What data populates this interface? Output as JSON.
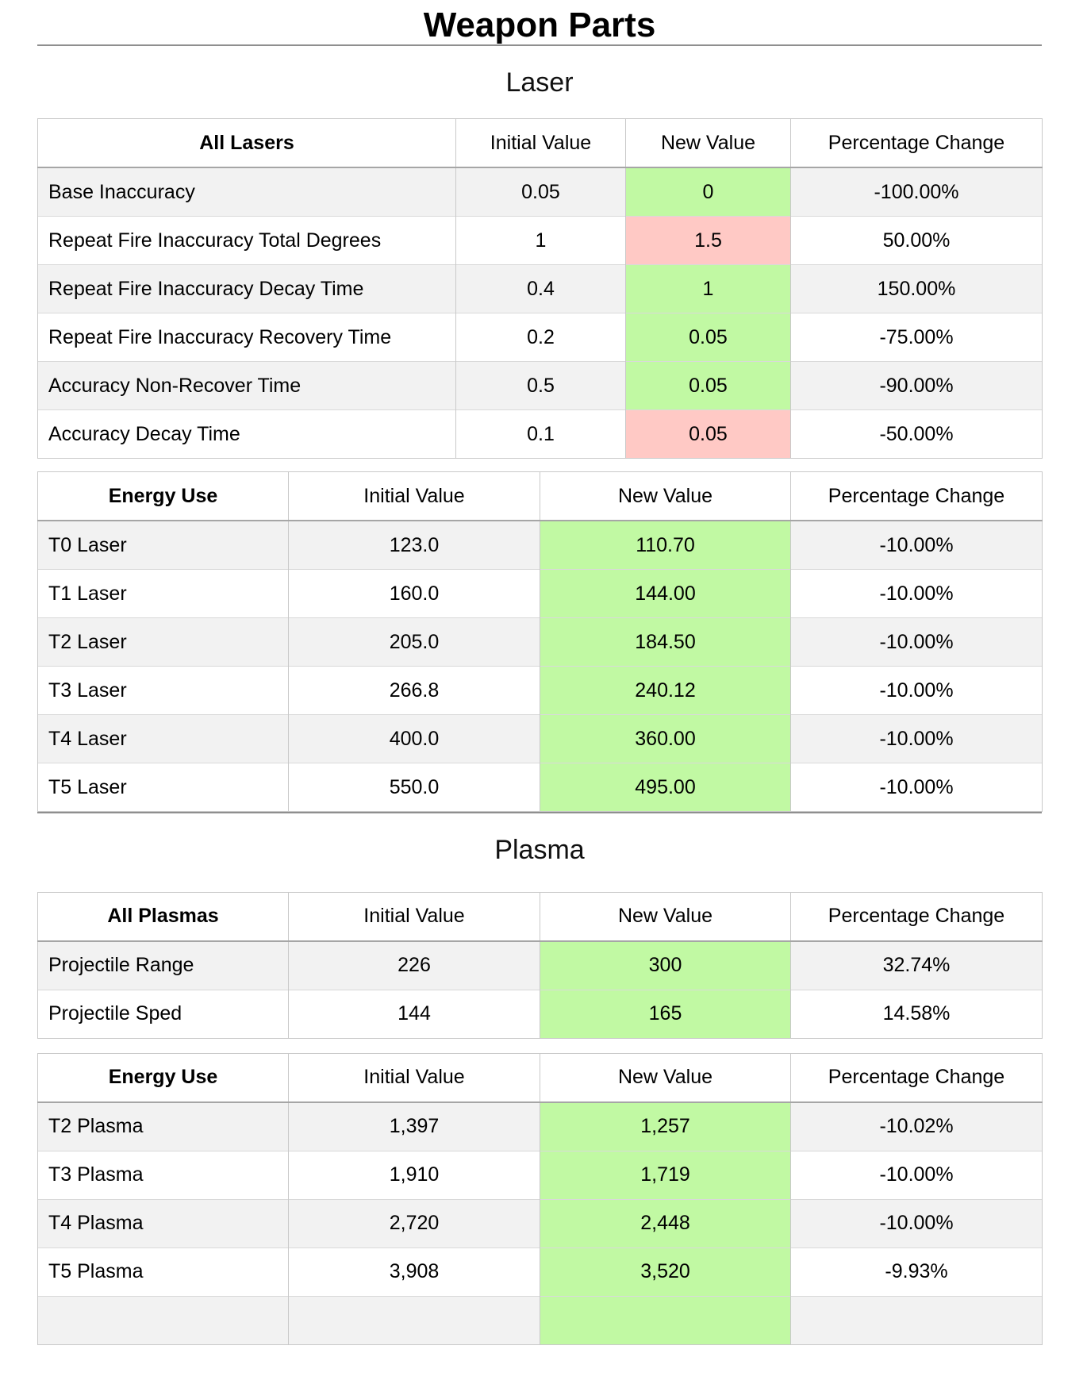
{
  "title": "Weapon Parts",
  "colors": {
    "highlight_green": "#c1f9a3",
    "highlight_red": "#ffc9c5"
  },
  "sections": [
    {
      "heading": "Laser",
      "tables": [
        {
          "headers": [
            "All Lasers",
            "Initial Value",
            "New Value",
            "Percentage Change"
          ],
          "col_widths": [
            "527px",
            "214px",
            "208px",
            "317px"
          ],
          "cut_off_next_row": false,
          "rows": [
            {
              "label": "Base Inaccuracy",
              "initial": "0.05",
              "new_value": "0",
              "highlight": "green",
              "pct_change": "-100.00%"
            },
            {
              "label": "Repeat Fire Inaccuracy Total Degrees",
              "initial": "1",
              "new_value": "1.5",
              "highlight": "red",
              "pct_change": "50.00%"
            },
            {
              "label": "Repeat Fire Inaccuracy Decay Time",
              "initial": "0.4",
              "new_value": "1",
              "highlight": "green",
              "pct_change": "150.00%"
            },
            {
              "label": "Repeat Fire Inaccuracy Recovery Time",
              "initial": "0.2",
              "new_value": "0.05",
              "highlight": "green",
              "pct_change": "-75.00%"
            },
            {
              "label": "Accuracy Non-Recover Time",
              "initial": "0.5",
              "new_value": "0.05",
              "highlight": "green",
              "pct_change": "-90.00%"
            },
            {
              "label": "Accuracy Decay Time",
              "initial": "0.1",
              "new_value": "0.05",
              "highlight": "red",
              "pct_change": "-50.00%"
            }
          ]
        },
        {
          "headers": [
            "Energy Use",
            "Initial Value",
            "New Value",
            "Percentage Change"
          ],
          "col_widths": [
            "316px",
            "317px",
            "316px",
            "317px"
          ],
          "cut_off_next_row": false,
          "rows": [
            {
              "label": "T0 Laser",
              "initial": "123.0",
              "new_value": "110.70",
              "highlight": "green",
              "pct_change": "-10.00%"
            },
            {
              "label": "T1 Laser",
              "initial": "160.0",
              "new_value": "144.00",
              "highlight": "green",
              "pct_change": "-10.00%"
            },
            {
              "label": "T2 Laser",
              "initial": "205.0",
              "new_value": "184.50",
              "highlight": "green",
              "pct_change": "-10.00%"
            },
            {
              "label": "T3 Laser",
              "initial": "266.8",
              "new_value": "240.12",
              "highlight": "green",
              "pct_change": "-10.00%"
            },
            {
              "label": "T4 Laser",
              "initial": "400.0",
              "new_value": "360.00",
              "highlight": "green",
              "pct_change": "-10.00%"
            },
            {
              "label": "T5 Laser",
              "initial": "550.0",
              "new_value": "495.00",
              "highlight": "green",
              "pct_change": "-10.00%"
            }
          ]
        }
      ]
    },
    {
      "heading": "Plasma",
      "tables": [
        {
          "headers": [
            "All Plasmas",
            "Initial Value",
            "New Value",
            "Percentage Change"
          ],
          "col_widths": [
            "316px",
            "317px",
            "316px",
            "317px"
          ],
          "cut_off_next_row": false,
          "rows": [
            {
              "label": "Projectile Range",
              "initial": "226",
              "new_value": "300",
              "highlight": "green",
              "pct_change": "32.74%"
            },
            {
              "label": "Projectile Sped",
              "initial": "144",
              "new_value": "165",
              "highlight": "green",
              "pct_change": "14.58%"
            }
          ]
        },
        {
          "headers": [
            "Energy Use",
            "Initial Value",
            "New Value",
            "Percentage Change"
          ],
          "col_widths": [
            "316px",
            "317px",
            "316px",
            "317px"
          ],
          "cut_off_next_row": true,
          "rows": [
            {
              "label": "T2 Plasma",
              "initial": "1,397",
              "new_value": "1,257",
              "highlight": "green",
              "pct_change": "-10.02%"
            },
            {
              "label": "T3 Plasma",
              "initial": "1,910",
              "new_value": "1,719",
              "highlight": "green",
              "pct_change": "-10.00%"
            },
            {
              "label": "T4 Plasma",
              "initial": "2,720",
              "new_value": "2,448",
              "highlight": "green",
              "pct_change": "-10.00%"
            },
            {
              "label": "T5 Plasma",
              "initial": "3,908",
              "new_value": "3,520",
              "highlight": "green",
              "pct_change": "-9.93%"
            }
          ]
        }
      ]
    }
  ]
}
